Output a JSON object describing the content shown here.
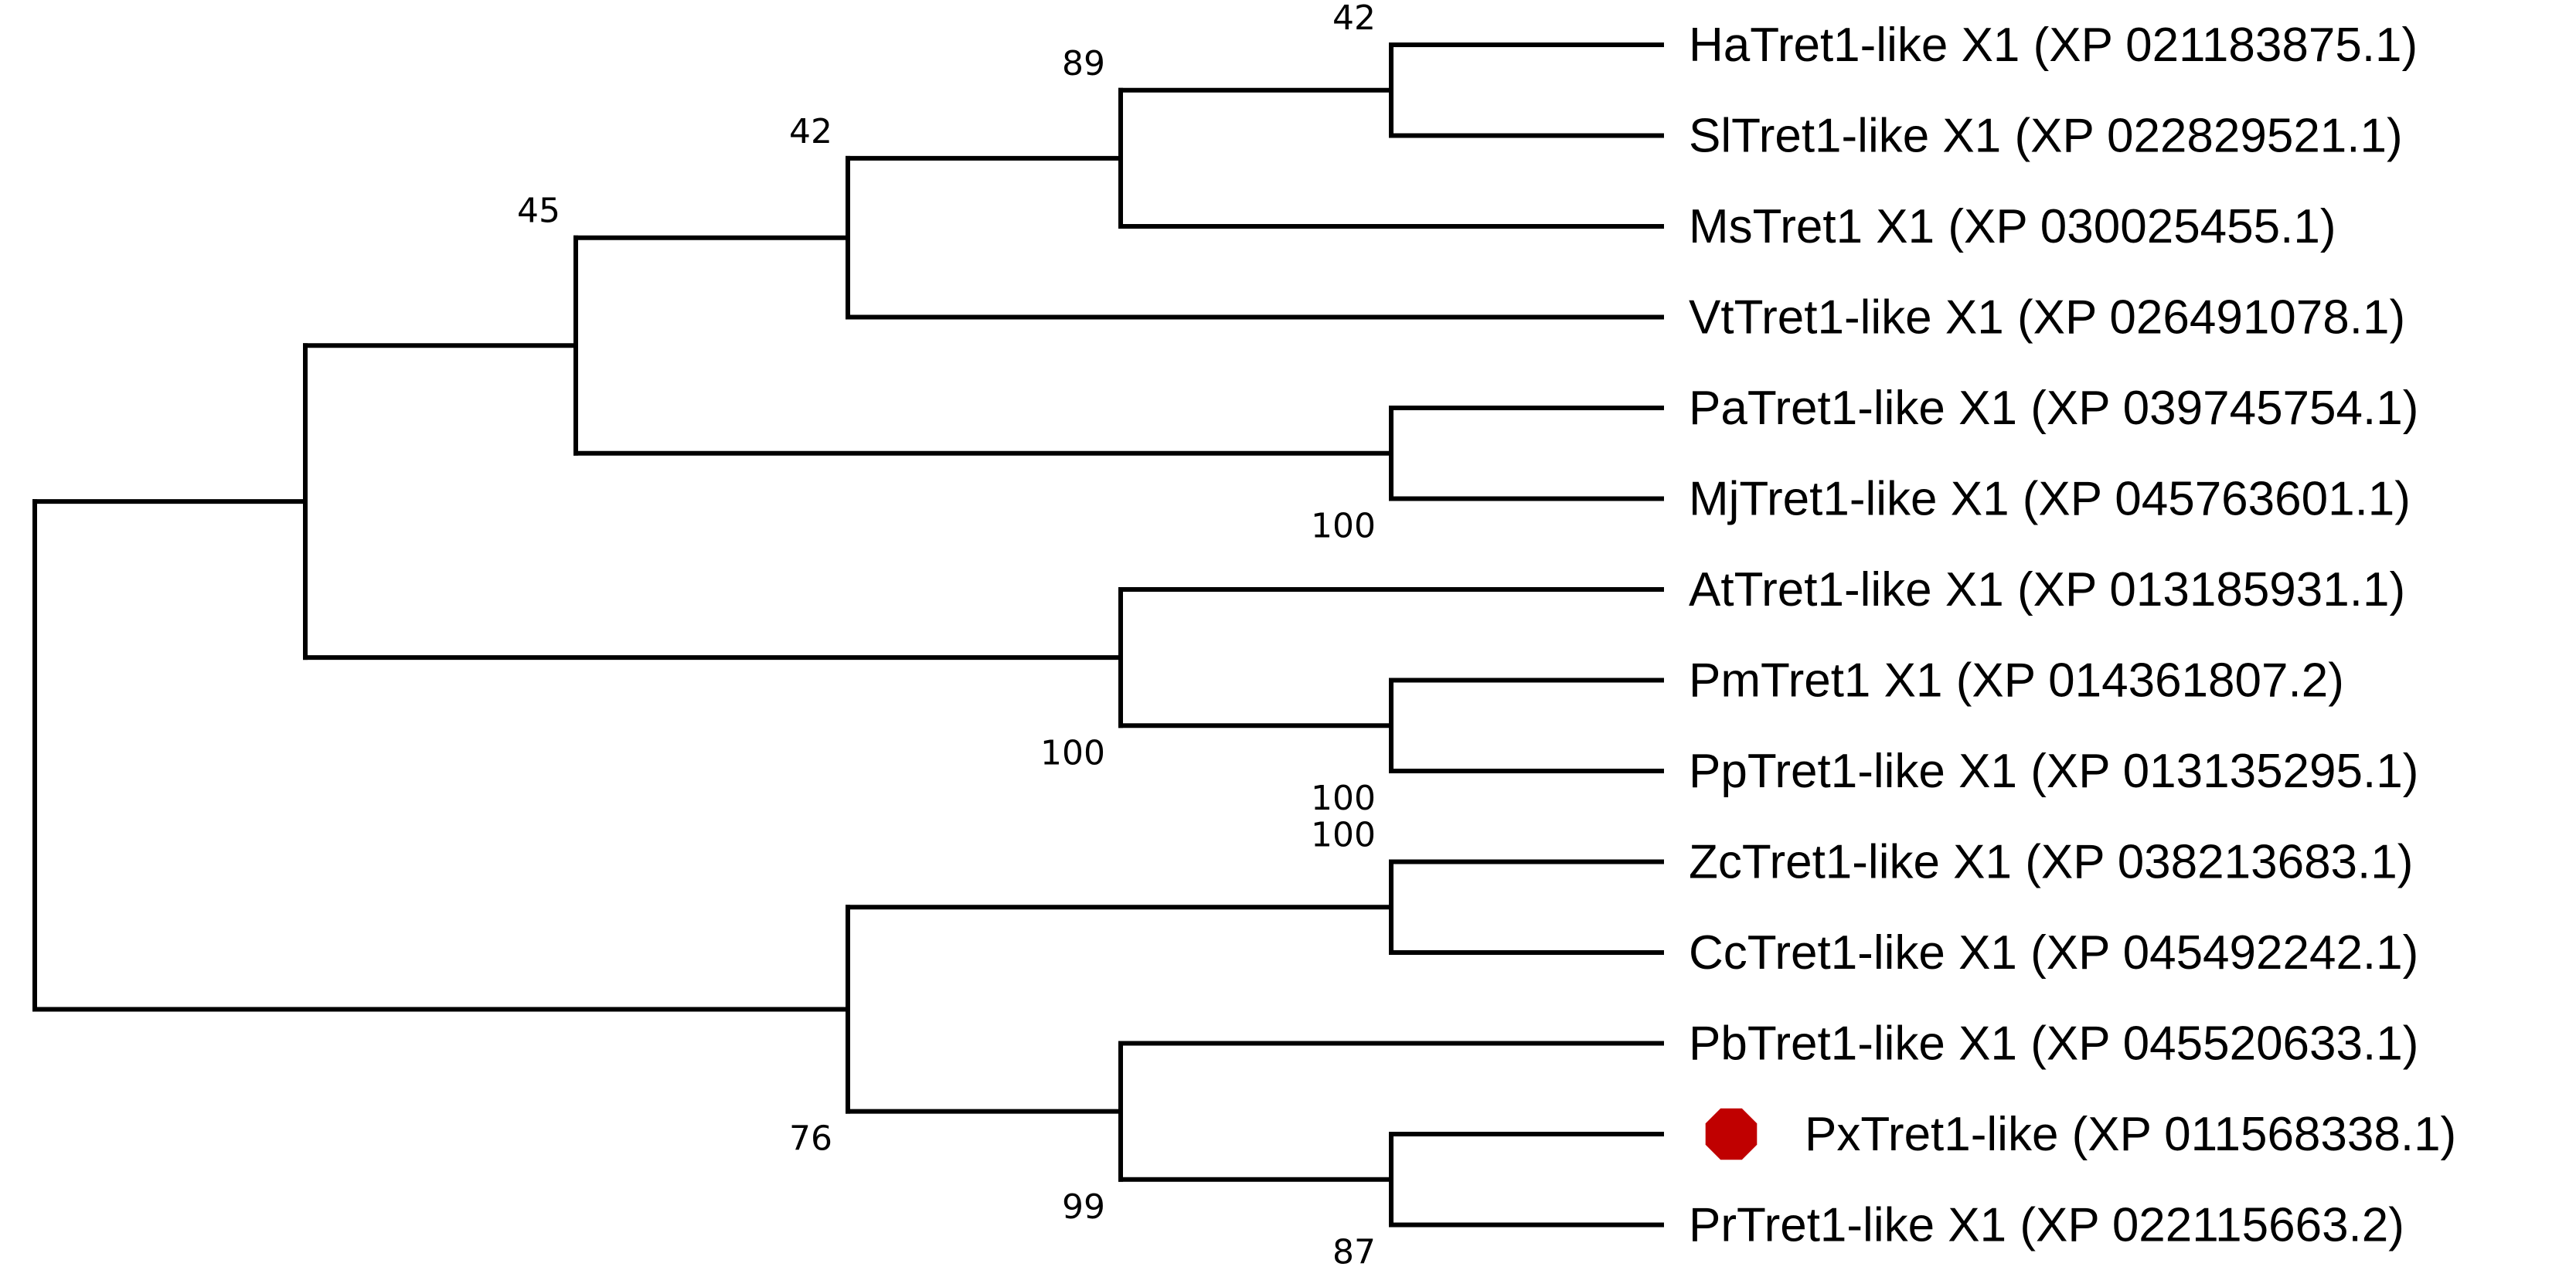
{
  "tree": {
    "marker_color": "#c00000",
    "leaves": [
      {
        "id": "L0",
        "label": "HaTret1-like X1 (XP 021183875.1)",
        "marker": false
      },
      {
        "id": "L1",
        "label": "SlTret1-like X1 (XP 022829521.1)",
        "marker": false
      },
      {
        "id": "L2",
        "label": "MsTret1 X1 (XP 030025455.1)",
        "marker": false
      },
      {
        "id": "L3",
        "label": "VtTret1-like X1 (XP 026491078.1)",
        "marker": false
      },
      {
        "id": "L4",
        "label": "PaTret1-like X1 (XP 039745754.1)",
        "marker": false
      },
      {
        "id": "L5",
        "label": "MjTret1-like X1 (XP 045763601.1)",
        "marker": false
      },
      {
        "id": "L6",
        "label": "AtTret1-like X1 (XP 013185931.1)",
        "marker": false
      },
      {
        "id": "L7",
        "label": "PmTret1 X1 (XP 014361807.2)",
        "marker": false
      },
      {
        "id": "L8",
        "label": "PpTret1-like X1 (XP 013135295.1)",
        "marker": false
      },
      {
        "id": "L9",
        "label": "ZcTret1-like X1 (XP 038213683.1)",
        "marker": false
      },
      {
        "id": "L10",
        "label": "CcTret1-like X1 (XP 045492242.1)",
        "marker": false
      },
      {
        "id": "L11",
        "label": "PbTret1-like X1 (XP 045520633.1)",
        "marker": false
      },
      {
        "id": "L12",
        "label": "PxTret1-like (XP 011568338.1)",
        "marker": true
      },
      {
        "id": "L13",
        "label": "PrTret1-like X1 (XP 022115663.2)",
        "marker": false
      }
    ],
    "clades": [
      {
        "id": "N_ha_sl",
        "children": [
          "L0",
          "L1"
        ],
        "bootstrap": "42",
        "label_side": "above"
      },
      {
        "id": "N_ms",
        "children": [
          "N_ha_sl",
          "L2"
        ],
        "bootstrap": "89",
        "label_side": "above"
      },
      {
        "id": "N_vt",
        "children": [
          "N_ms",
          "L3"
        ],
        "bootstrap": "42",
        "label_side": "above"
      },
      {
        "id": "N_pa_mj",
        "children": [
          "L4",
          "L5"
        ],
        "bootstrap": "100",
        "label_side": "below"
      },
      {
        "id": "N_a",
        "children": [
          "N_vt",
          "N_pa_mj"
        ],
        "bootstrap": "45",
        "label_side": "above"
      },
      {
        "id": "N_pm_pp",
        "children": [
          "L7",
          "L8"
        ],
        "bootstrap": "100",
        "label_side": "below"
      },
      {
        "id": "N_at",
        "children": [
          "L6",
          "N_pm_pp"
        ],
        "bootstrap": "100",
        "label_side": "below"
      },
      {
        "id": "N_upper",
        "children": [
          "N_a",
          "N_at"
        ],
        "bootstrap": "",
        "label_side": "above"
      },
      {
        "id": "N_zc_cc",
        "children": [
          "L9",
          "L10"
        ],
        "bootstrap": "100",
        "label_side": "above"
      },
      {
        "id": "N_px_pr",
        "children": [
          "L12",
          "L13"
        ],
        "bootstrap": "87",
        "label_side": "below"
      },
      {
        "id": "N_pb",
        "children": [
          "L11",
          "N_px_pr"
        ],
        "bootstrap": "99",
        "label_side": "below"
      },
      {
        "id": "N_lower",
        "children": [
          "N_zc_cc",
          "N_pb"
        ],
        "bootstrap": "76",
        "label_side": "below"
      },
      {
        "id": "N_root",
        "children": [
          "N_upper",
          "N_lower"
        ],
        "bootstrap": "",
        "label_side": "above"
      }
    ]
  }
}
